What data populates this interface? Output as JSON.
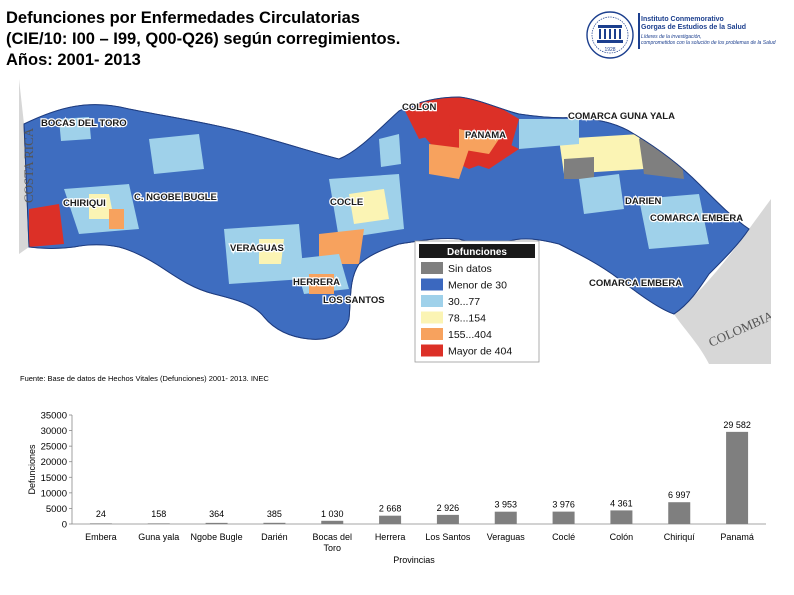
{
  "title": {
    "line1": "Defunciones por Enfermedades Circulatorias",
    "line2": "(CIE/10: I00 – I99, Q00-Q26) según corregimientos.",
    "line3": "Años: 2001- 2013"
  },
  "logo": {
    "org_line1": "Instituto Conmemorativo",
    "org_line2": "Gorgas de Estudios de la Salud",
    "tagline1": "Líderes de la investigación,",
    "tagline2": "comprometidos con la solución de los problemas de la Salud",
    "seal_year": "1928"
  },
  "map": {
    "region_labels": {
      "bocas": "BOCAS DEL TORO",
      "colon": "COLON",
      "panama": "PANAMA",
      "guna": "COMARCA GUNA YALA",
      "chiriqui": "CHIRIQUI",
      "ngobe": "C. NGOBE BUGLE",
      "cocle": "COCLE",
      "darien": "DARIEN",
      "embera1": "COMARCA EMBERA",
      "veraguas": "VERAGUAS",
      "herrera": "HERRERA",
      "lossantos": "LOS SANTOS",
      "embera2": "COMARCA EMBERA",
      "costarica": "COSTA RICA",
      "colombia": "COLOMBIA"
    },
    "legend": {
      "title": "Defunciones",
      "items": [
        {
          "label": "Sin datos",
          "color": "#7f7f7f"
        },
        {
          "label": "Menor de 30",
          "color": "#3b68bf"
        },
        {
          "label": "30...77",
          "color": "#9fd1ea"
        },
        {
          "label": "78...154",
          "color": "#fbf4b4"
        },
        {
          "label": "155...404",
          "color": "#f7a25e"
        },
        {
          "label": "Mayor de 404",
          "color": "#dc3027"
        }
      ]
    },
    "colors": {
      "water": "#ffffff",
      "neighbor": "#d7d7d7",
      "fill": "#3e6dc0"
    }
  },
  "source": "Fuente: Base de datos de Hechos Vitales (Defunciones) 2001- 2013. INEC",
  "chart_data": {
    "type": "bar",
    "title": "",
    "xlabel": "Provincias",
    "ylabel": "Defunciones",
    "categories": [
      "Embera",
      "Guna yala",
      "Ngobe Bugle",
      "Darién",
      "Bocas del Toro",
      "Herrera",
      "Los Santos",
      "Veraguas",
      "Coclé",
      "Colón",
      "Chiriquí",
      "Panamá"
    ],
    "values": [
      24,
      158,
      364,
      385,
      1030,
      2668,
      2926,
      3953,
      3976,
      4361,
      6997,
      29582
    ],
    "value_labels": [
      "24",
      "158",
      "364",
      "385",
      "1 030",
      "2 668",
      "2 926",
      "3 953",
      "3 976",
      "4 361",
      "6 997",
      "29 582"
    ],
    "yticks": [
      "0",
      "5000",
      "10000",
      "15000",
      "20000",
      "25000",
      "30000",
      "35000"
    ],
    "ylim": [
      0,
      35000
    ],
    "bar_color": "#7f7f7f"
  }
}
